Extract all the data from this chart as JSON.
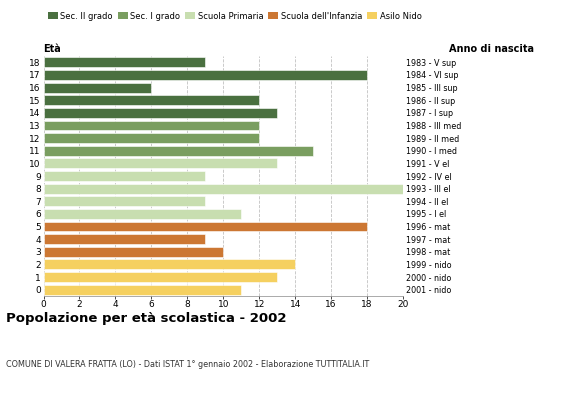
{
  "ages": [
    18,
    17,
    16,
    15,
    14,
    13,
    12,
    11,
    10,
    9,
    8,
    7,
    6,
    5,
    4,
    3,
    2,
    1,
    0
  ],
  "values": [
    9,
    18,
    6,
    12,
    13,
    12,
    12,
    15,
    13,
    9,
    20,
    9,
    11,
    18,
    9,
    10,
    14,
    13,
    11
  ],
  "colors": [
    "#4a7040",
    "#4a7040",
    "#4a7040",
    "#4a7040",
    "#4a7040",
    "#7a9e60",
    "#7a9e60",
    "#7a9e60",
    "#c8deb0",
    "#c8deb0",
    "#c8deb0",
    "#c8deb0",
    "#c8deb0",
    "#cc7733",
    "#cc7733",
    "#cc7733",
    "#f5d060",
    "#f5d060",
    "#f5d060"
  ],
  "right_labels": [
    "1983 - V sup",
    "1984 - VI sup",
    "1985 - III sup",
    "1986 - II sup",
    "1987 - I sup",
    "1988 - III med",
    "1989 - II med",
    "1990 - I med",
    "1991 - V el",
    "1992 - IV el",
    "1993 - III el",
    "1994 - II el",
    "1995 - I el",
    "1996 - mat",
    "1997 - mat",
    "1998 - mat",
    "1999 - nido",
    "2000 - nido",
    "2001 - nido"
  ],
  "legend_labels": [
    "Sec. II grado",
    "Sec. I grado",
    "Scuola Primaria",
    "Scuola dell'Infanzia",
    "Asilo Nido"
  ],
  "legend_colors": [
    "#4a7040",
    "#7a9e60",
    "#c8deb0",
    "#cc7733",
    "#f5d060"
  ],
  "title": "Popolazione per età scolastica - 2002",
  "subtitle": "COMUNE DI VALERA FRATTA (LO) - Dati ISTAT 1° gennaio 2002 - Elaborazione TUTTITALIA.IT",
  "xlabel_left": "Età",
  "xlabel_right": "Anno di nascita",
  "xlim": [
    0,
    20
  ],
  "xticks": [
    0,
    2,
    4,
    6,
    8,
    10,
    12,
    14,
    16,
    18,
    20
  ],
  "background_color": "#ffffff",
  "grid_color": "#bbbbbb"
}
